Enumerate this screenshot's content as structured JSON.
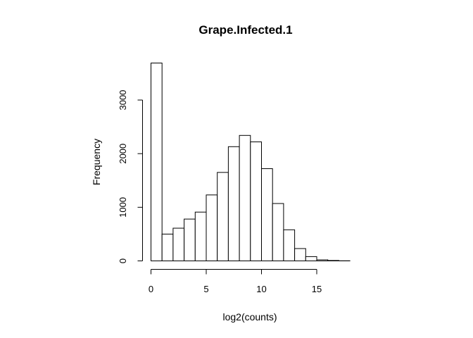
{
  "chart_data": {
    "type": "bar",
    "title": "Grape.Infected.1",
    "xlabel": "log2(counts)",
    "ylabel": "Frequency",
    "bin_edges": [
      0,
      1,
      2,
      3,
      4,
      5,
      6,
      7,
      8,
      9,
      10,
      11,
      12,
      13,
      14,
      15,
      16,
      17,
      18
    ],
    "values": [
      3690,
      500,
      610,
      780,
      910,
      1230,
      1650,
      2130,
      2340,
      2220,
      1720,
      1070,
      580,
      230,
      80,
      20,
      8,
      2
    ],
    "xticks": [
      "0",
      "5",
      "10",
      "15"
    ],
    "xtick_values": [
      0,
      5,
      10,
      15
    ],
    "yticks": [
      "0",
      "1000",
      "2000",
      "3000"
    ],
    "ytick_values": [
      0,
      1000,
      2000,
      3000
    ],
    "xlim": [
      0,
      18
    ],
    "ylim": [
      0,
      3690
    ],
    "grid": false,
    "colors": {
      "bar_fill": "#ffffff",
      "bar_stroke": "#000000"
    }
  }
}
